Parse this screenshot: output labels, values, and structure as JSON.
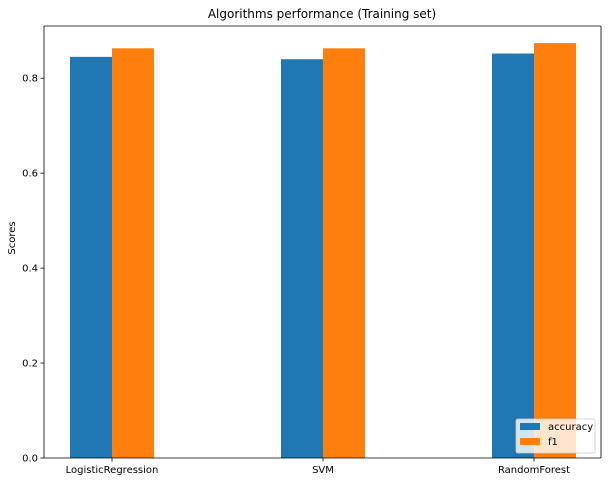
{
  "chart_data": {
    "type": "bar",
    "title": "Algorithms performance (Training set)",
    "xlabel": "",
    "ylabel": "Scores",
    "categories": [
      "LogisticRegression",
      "SVM",
      "RandomForest"
    ],
    "series": [
      {
        "name": "accuracy",
        "color": "#1f77b4",
        "values": [
          0.845,
          0.84,
          0.852
        ]
      },
      {
        "name": "f1",
        "color": "#ff7f0e",
        "values": [
          0.863,
          0.863,
          0.874
        ]
      }
    ],
    "ylim": [
      0,
      0.91
    ],
    "yticks": [
      0.0,
      0.2,
      0.4,
      0.6,
      0.8
    ],
    "ytick_labels": [
      "0.0",
      "0.2",
      "0.4",
      "0.6",
      "0.8"
    ],
    "grid": false,
    "legend_position": "lower-right"
  }
}
